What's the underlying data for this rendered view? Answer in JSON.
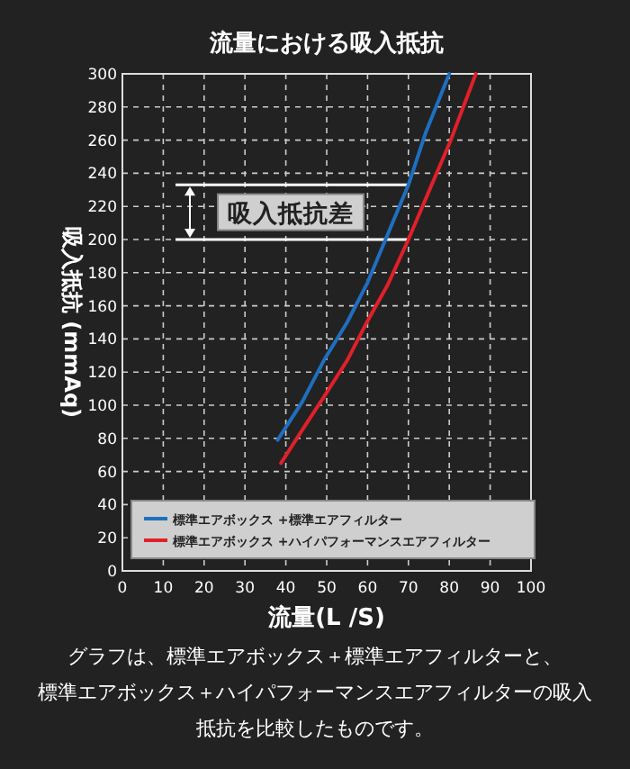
{
  "chart_data": {
    "type": "line",
    "title": "流量における吸入抵抗",
    "xlabel": "流量(L /S)",
    "ylabel": "吸入抵抗 (mmAq)",
    "xlim": [
      0,
      100
    ],
    "xticks": [
      0,
      10,
      20,
      30,
      40,
      50,
      60,
      70,
      80,
      90,
      100
    ],
    "ylim": [
      0,
      300
    ],
    "yticks": [
      0,
      20,
      40,
      60,
      80,
      100,
      120,
      140,
      160,
      180,
      200,
      220,
      240,
      260,
      280,
      300
    ],
    "grid": true,
    "legend": "bottom",
    "marker": "none",
    "line_style": "solid",
    "series": [
      {
        "name": "標準エアボックス +標準エアフィルター",
        "color": "#1f6fc0",
        "x": [
          38,
          44,
          49.3,
          55,
          60,
          64.4,
          70,
          74.3,
          80
        ],
        "values": [
          79,
          102,
          127,
          150,
          174,
          200,
          233,
          265,
          300
        ]
      },
      {
        "name": "標準エアボックス +ハイパフォーマンスエアフィルター",
        "color": "#e0202a",
        "x": [
          38.8,
          44,
          49.3,
          55,
          59.6,
          65,
          70,
          75,
          80.2,
          86.5
        ],
        "values": [
          65,
          85,
          105,
          127,
          149,
          173,
          200,
          229,
          259,
          300
        ]
      }
    ],
    "ref_lines": [
      {
        "axis": "y",
        "value": 233,
        "color": "#ffffff"
      },
      {
        "axis": "y",
        "value": 200,
        "color": "#ffffff"
      }
    ],
    "annotations": [
      "吸入抵抗差",
      "グラフは、標準エアボックス＋標準エアフィルターと、標準エアボックス＋ハイパフォーマンスエアフィルターの吸入抵抗を比較したものです。"
    ]
  }
}
